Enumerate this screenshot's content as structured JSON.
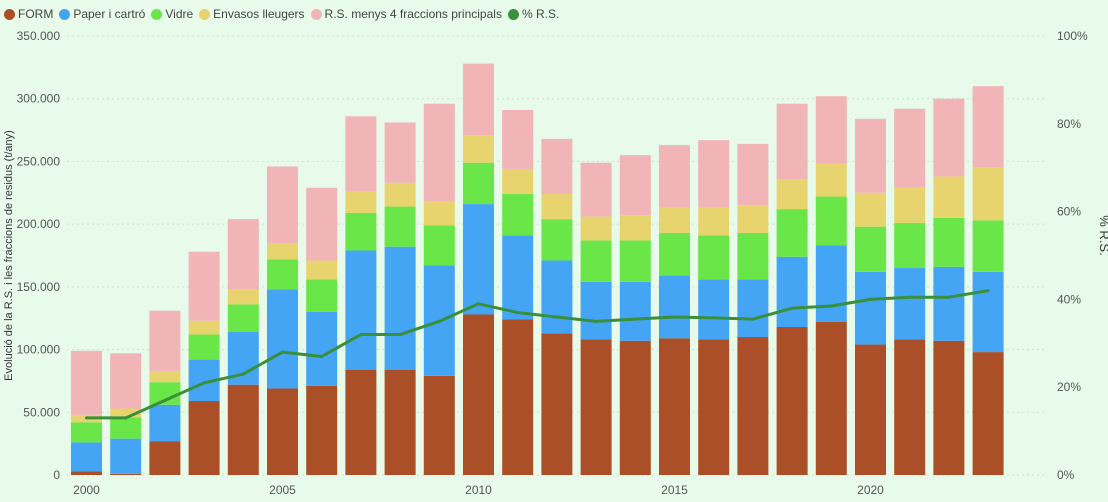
{
  "legend": [
    {
      "label": "FORM",
      "color": "#aa4f27"
    },
    {
      "label": "Paper i cartró",
      "color": "#45a5f5"
    },
    {
      "label": "Vidre",
      "color": "#6be649"
    },
    {
      "label": "Envasos lleugers",
      "color": "#e8d46f"
    },
    {
      "label": "R.S. menys 4 fraccions principals",
      "color": "#f1b5b8"
    },
    {
      "label": "% R.S.",
      "color": "#3a8f3a"
    }
  ],
  "chart_data": {
    "type": "bar",
    "stacked": true,
    "ylabel": "Evolució de la R.S. i les fraccions de residus (t/any)",
    "y2label": "% R.S.",
    "ylim": [
      0,
      350000
    ],
    "y2lim": [
      0,
      100
    ],
    "yticks": [
      "0",
      "50.000",
      "100.000",
      "150.000",
      "200.000",
      "250.000",
      "300.000",
      "350.000"
    ],
    "y2ticks": [
      "0%",
      "20%",
      "40%",
      "60%",
      "80%",
      "100%"
    ],
    "xticks": [
      "2000",
      "2005",
      "2010",
      "2015",
      "2020"
    ],
    "grid": true,
    "legend_position": "top-left",
    "x": [
      2000,
      2001,
      2002,
      2003,
      2004,
      2005,
      2006,
      2007,
      2008,
      2009,
      2010,
      2011,
      2012,
      2013,
      2014,
      2015,
      2016,
      2017,
      2018,
      2019,
      2020,
      2021,
      2022,
      2023
    ],
    "series": [
      {
        "name": "FORM",
        "color": "#aa4f27",
        "values": [
          3000,
          1000,
          27000,
          59000,
          72000,
          69000,
          71000,
          84000,
          84000,
          79000,
          128000,
          124000,
          113000,
          108000,
          107000,
          109000,
          108000,
          110000,
          118000,
          122000,
          104000,
          108000,
          107000,
          98000
        ]
      },
      {
        "name": "Paper i cartró",
        "color": "#45a5f5",
        "values": [
          23000,
          28000,
          29000,
          33000,
          42000,
          79000,
          59000,
          95000,
          98000,
          88000,
          88000,
          67000,
          58000,
          46000,
          47000,
          50000,
          48000,
          46000,
          56000,
          61000,
          58000,
          57000,
          59000,
          64000
        ]
      },
      {
        "name": "Vidre",
        "color": "#6be649",
        "values": [
          16000,
          17000,
          18000,
          20000,
          22000,
          24000,
          26000,
          30000,
          32000,
          32000,
          33000,
          33000,
          33000,
          33000,
          33000,
          34000,
          35000,
          37000,
          38000,
          39000,
          36000,
          36000,
          39000,
          41000
        ]
      },
      {
        "name": "Envasos lleugers",
        "color": "#e8d46f",
        "values": [
          6000,
          7000,
          9000,
          11000,
          12000,
          13000,
          15000,
          17000,
          19000,
          19000,
          22000,
          20000,
          20000,
          19000,
          20000,
          20000,
          22000,
          22000,
          24000,
          26000,
          27000,
          28000,
          33000,
          42000
        ]
      },
      {
        "name": "R.S. menys 4 fraccions principals",
        "color": "#f1b5b8",
        "values": [
          51000,
          44000,
          48000,
          55000,
          56000,
          61000,
          58000,
          60000,
          48000,
          78000,
          57000,
          47000,
          44000,
          43000,
          48000,
          50000,
          54000,
          49000,
          60000,
          54000,
          59000,
          63000,
          62000,
          65000
        ]
      }
    ],
    "line_series": {
      "name": "% R.S.",
      "color": "#3a8f3a",
      "axis": "right",
      "values": [
        13,
        13,
        17,
        21,
        23,
        28,
        27,
        32,
        32,
        35,
        39,
        37,
        36,
        35,
        35.5,
        36,
        35.8,
        35.5,
        38,
        38.5,
        40,
        40.5,
        40.5,
        42
      ]
    }
  }
}
